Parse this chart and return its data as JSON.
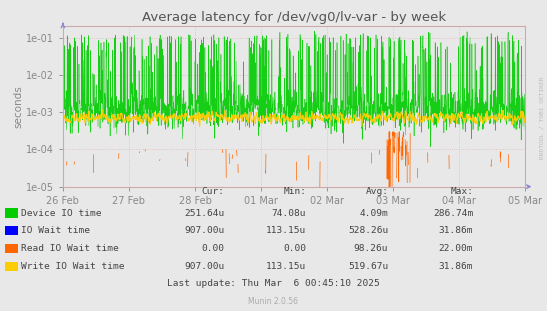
{
  "title": "Average latency for /dev/vg0/lv-var - by week",
  "ylabel": "seconds",
  "bg_color": "#e8e8e8",
  "grid_color": "#ffffff",
  "dot_grid_color": "#ddbbbb",
  "watermark": "RRDTOOL / TOBI OETIKER",
  "munin_version": "Munin 2.0.56",
  "last_update": "Last update: Thu Mar  6 00:45:10 2025",
  "xticklabels": [
    "26 Feb",
    "27 Feb",
    "28 Feb",
    "01 Mar",
    "02 Mar",
    "03 Mar",
    "04 Mar",
    "05 Mar"
  ],
  "legend": [
    {
      "label": "Device IO time",
      "color": "#00cc00"
    },
    {
      "label": "IO Wait time",
      "color": "#0000ff"
    },
    {
      "label": "Read IO Wait time",
      "color": "#ff6600"
    },
    {
      "label": "Write IO Wait time",
      "color": "#ffcc00"
    }
  ],
  "legend_data": [
    {
      "cur": "251.64u",
      "min": "74.08u",
      "avg": "4.09m",
      "max": "286.74m"
    },
    {
      "cur": "907.00u",
      "min": "113.15u",
      "avg": "528.26u",
      "max": "31.86m"
    },
    {
      "cur": "0.00",
      "min": "0.00",
      "avg": "98.26u",
      "max": "22.00m"
    },
    {
      "cur": "907.00u",
      "min": "113.15u",
      "avg": "519.67u",
      "max": "31.86m"
    }
  ],
  "arrow_color": "#8888cc",
  "spine_color": "#ccaaaa",
  "tick_color": "#888888",
  "title_color": "#555555",
  "text_color": "#444444"
}
